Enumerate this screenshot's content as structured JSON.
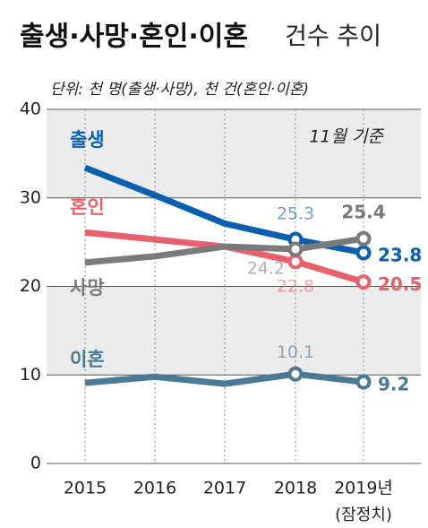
{
  "chart_data": {
    "type": "line",
    "title_bold": "출생·사망·혼인·이혼",
    "title_light": "건수 추이",
    "subtitle": "단위: 천 명(출생·사망), 천 건(혼인·이혼)",
    "annotation": "11월 기준",
    "categories": [
      "2015",
      "2016",
      "2017",
      "2018",
      "2019년"
    ],
    "x_note": "(잠정치)",
    "series": [
      {
        "name": "출생",
        "color": "#0a5fb0",
        "values": [
          33.4,
          30.3,
          27.1,
          25.3,
          23.8
        ]
      },
      {
        "name": "혼인",
        "color": "#e8606a",
        "values": [
          26.1,
          25.3,
          24.5,
          22.8,
          20.5
        ]
      },
      {
        "name": "사망",
        "color": "#7a7a7a",
        "values": [
          22.7,
          23.4,
          24.5,
          24.2,
          25.4
        ]
      },
      {
        "name": "이혼",
        "color": "#4a7a96",
        "values": [
          9.1,
          9.8,
          9.0,
          10.1,
          9.2
        ]
      }
    ],
    "ylim": [
      0,
      40
    ],
    "yticks": [
      0,
      10,
      20,
      30,
      40
    ],
    "bands": true
  }
}
